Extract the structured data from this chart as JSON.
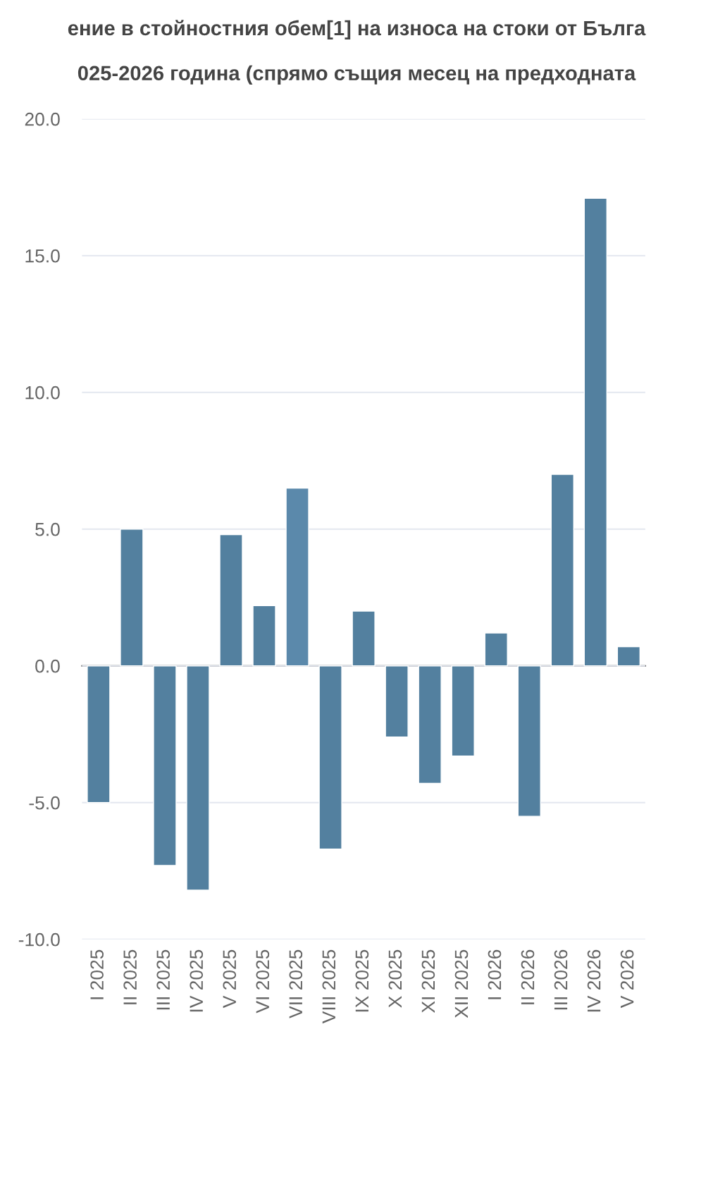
{
  "chart_data": {
    "type": "bar",
    "title": "ение в стойностния обем[1] на износа на стоки от Бълга",
    "subtitle": "025-2026 година (спрямо същия месец на предходната",
    "categories": [
      "I 2025",
      "II 2025",
      "III 2025",
      "IV 2025",
      "V 2025",
      "VI 2025",
      "VII 2025",
      "VIII 2025",
      "IX 2025",
      "X 2025",
      "XI 2025",
      "XII 2025",
      "I 2026",
      "II 2026",
      "III 2026",
      "IV 2026",
      "V 2026"
    ],
    "values": [
      -5.0,
      5.0,
      -7.3,
      -8.2,
      4.8,
      2.2,
      6.5,
      -6.7,
      2.0,
      -2.6,
      -4.3,
      -3.3,
      1.2,
      -5.5,
      7.0,
      17.1,
      0.7
    ],
    "colors": [
      "#53809f",
      "#53809f",
      "#53809f",
      "#53809f",
      "#53809f",
      "#53809f",
      "#5b89ab",
      "#53809f",
      "#53809f",
      "#53809f",
      "#53809f",
      "#53809f",
      "#53809f",
      "#53809f",
      "#53809f",
      "#53809f",
      "#53809f"
    ],
    "ylim": [
      -10,
      20
    ],
    "yticks": [
      {
        "value": -10,
        "label": "-10.0"
      },
      {
        "value": -5,
        "label": "-5.0"
      },
      {
        "value": 0,
        "label": "0.0"
      },
      {
        "value": 5,
        "label": "5.0"
      },
      {
        "value": 10,
        "label": "10.0"
      },
      {
        "value": 15,
        "label": "15.0"
      },
      {
        "value": 20,
        "label": "20.0"
      }
    ],
    "grid": "y"
  }
}
